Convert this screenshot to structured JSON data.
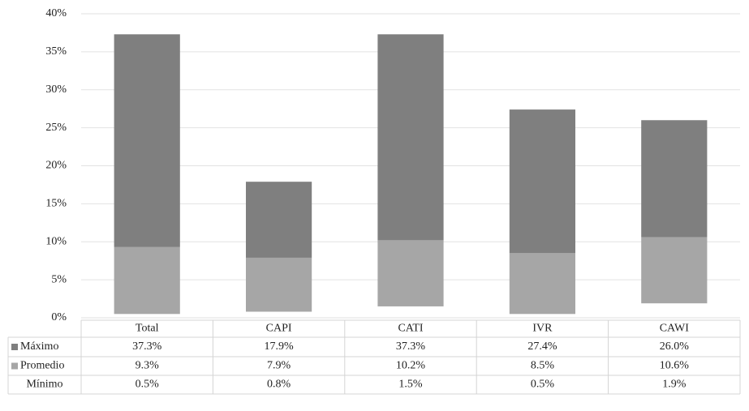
{
  "chart_data": {
    "type": "range-bar",
    "categories": [
      "Total",
      "CAPI",
      "CATI",
      "IVR",
      "CAWI"
    ],
    "series": [
      {
        "name": "Máximo",
        "color": "#7f7f7f",
        "values": [
          37.3,
          17.9,
          37.3,
          27.4,
          26.0
        ],
        "value_labels": [
          "37.3%",
          "17.9%",
          "37.3%",
          "27.4%",
          "26.0%"
        ]
      },
      {
        "name": "Promedio",
        "color": "#a6a6a6",
        "values": [
          9.3,
          7.9,
          10.2,
          8.5,
          10.6
        ],
        "value_labels": [
          "9.3%",
          "7.9%",
          "10.2%",
          "8.5%",
          "10.6%"
        ]
      },
      {
        "name": "Mínimo",
        "values": [
          0.5,
          0.8,
          1.5,
          0.5,
          1.9
        ],
        "value_labels": [
          "0.5%",
          "0.8%",
          "1.5%",
          "0.5%",
          "1.9%"
        ]
      }
    ],
    "ylim": [
      0,
      40
    ],
    "yticks": [
      {
        "value": 0,
        "label": "0%"
      },
      {
        "value": 5,
        "label": "5%"
      },
      {
        "value": 10,
        "label": "10%"
      },
      {
        "value": 15,
        "label": "15%"
      },
      {
        "value": 20,
        "label": "20%"
      },
      {
        "value": 25,
        "label": "25%"
      },
      {
        "value": 30,
        "label": "30%"
      },
      {
        "value": 35,
        "label": "35%"
      },
      {
        "value": 40,
        "label": "40%"
      }
    ],
    "grid": true
  }
}
